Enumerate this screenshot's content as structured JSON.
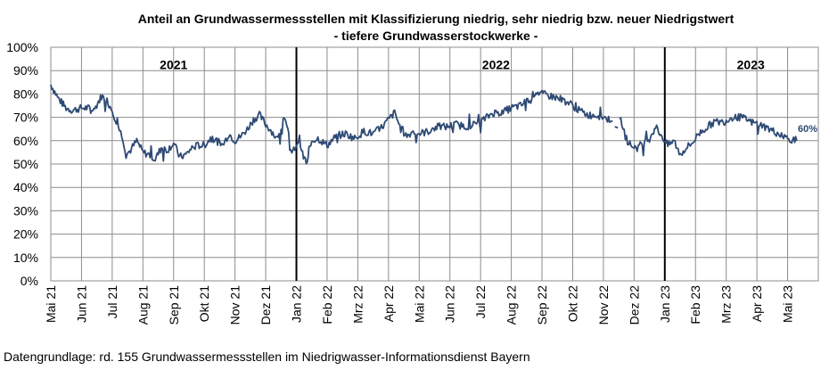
{
  "chart_data": {
    "type": "line",
    "title_line1": "Anteil an Grundwassermessstellen mit Klassifizierung niedrig, sehr niedrig bzw. neuer Niedrigstwert",
    "title_line2": "- tiefere Grundwasserstockwerke -",
    "y_ticks": [
      "0%",
      "10%",
      "20%",
      "30%",
      "40%",
      "50%",
      "60%",
      "70%",
      "80%",
      "90%",
      "100%"
    ],
    "ylim": [
      0,
      100
    ],
    "x_ticks": [
      "Mai 21",
      "Jun 21",
      "Jul 21",
      "Aug 21",
      "Sep 21",
      "Okt 21",
      "Nov 21",
      "Dez 21",
      "Jan 22",
      "Feb 22",
      "Mrz 22",
      "Apr 22",
      "Mai 22",
      "Jun 22",
      "Jul 22",
      "Aug 22",
      "Sep 22",
      "Okt 22",
      "Nov 22",
      "Dez 22",
      "Jan 23",
      "Feb 23",
      "Mrz 23",
      "Apr 23",
      "Mai 23"
    ],
    "grid": true,
    "year_labels": [
      {
        "text": "2021",
        "month_index": 4.0
      },
      {
        "text": "2022",
        "month_index": 14.5
      },
      {
        "text": "2023",
        "month_index": 22.8
      }
    ],
    "year_dividers_month_index": [
      8,
      20
    ],
    "end_label": "60%",
    "line_color": "#2e4a74",
    "series_anchor_points": [
      [
        0.0,
        84
      ],
      [
        0.25,
        78
      ],
      [
        0.5,
        74
      ],
      [
        0.7,
        73
      ],
      [
        1.0,
        74
      ],
      [
        1.2,
        74
      ],
      [
        1.4,
        73
      ],
      [
        1.65,
        79
      ],
      [
        1.8,
        78
      ],
      [
        2.0,
        73
      ],
      [
        2.2,
        66
      ],
      [
        2.35,
        61
      ],
      [
        2.45,
        54
      ],
      [
        2.6,
        56
      ],
      [
        2.8,
        60
      ],
      [
        3.0,
        55
      ],
      [
        3.2,
        54
      ],
      [
        3.4,
        52
      ],
      [
        3.6,
        57
      ],
      [
        3.8,
        56
      ],
      [
        4.0,
        59
      ],
      [
        4.2,
        53
      ],
      [
        4.4,
        54
      ],
      [
        4.6,
        57
      ],
      [
        4.8,
        58
      ],
      [
        5.0,
        58
      ],
      [
        5.2,
        61
      ],
      [
        5.4,
        60
      ],
      [
        5.6,
        58
      ],
      [
        5.8,
        63
      ],
      [
        6.0,
        60
      ],
      [
        6.2,
        62
      ],
      [
        6.4,
        65
      ],
      [
        6.6,
        69
      ],
      [
        6.8,
        71
      ],
      [
        7.0,
        67
      ],
      [
        7.2,
        64
      ],
      [
        7.4,
        60
      ],
      [
        7.6,
        71
      ],
      [
        7.75,
        62
      ],
      [
        7.85,
        54
      ],
      [
        7.95,
        57
      ],
      [
        8.1,
        61
      ],
      [
        8.2,
        54
      ],
      [
        8.35,
        50
      ],
      [
        8.5,
        60
      ],
      [
        8.7,
        61
      ],
      [
        9.0,
        58
      ],
      [
        9.3,
        62
      ],
      [
        9.6,
        63
      ],
      [
        9.9,
        61
      ],
      [
        10.2,
        64
      ],
      [
        10.5,
        63
      ],
      [
        10.8,
        66
      ],
      [
        11.0,
        69
      ],
      [
        11.2,
        72
      ],
      [
        11.4,
        65
      ],
      [
        11.6,
        62
      ],
      [
        11.8,
        64
      ],
      [
        12.0,
        63
      ],
      [
        12.3,
        64
      ],
      [
        12.6,
        66
      ],
      [
        12.9,
        66
      ],
      [
        13.2,
        67
      ],
      [
        13.5,
        66
      ],
      [
        13.8,
        67
      ],
      [
        14.1,
        69
      ],
      [
        14.4,
        72
      ],
      [
        14.7,
        72
      ],
      [
        15.0,
        74
      ],
      [
        15.3,
        75
      ],
      [
        15.6,
        78
      ],
      [
        15.8,
        81
      ],
      [
        16.0,
        80
      ],
      [
        16.3,
        79
      ],
      [
        16.6,
        78
      ],
      [
        16.9,
        76
      ],
      [
        17.2,
        73
      ],
      [
        17.5,
        71
      ],
      [
        17.8,
        71
      ],
      [
        18.0,
        70
      ],
      [
        18.2,
        69
      ],
      [
        18.4,
        70
      ],
      [
        18.6,
        68
      ],
      [
        18.75,
        60
      ],
      [
        18.9,
        58
      ],
      [
        19.1,
        57
      ],
      [
        19.3,
        59
      ],
      [
        19.5,
        61
      ],
      [
        19.7,
        66
      ],
      [
        19.9,
        62
      ],
      [
        20.1,
        58
      ],
      [
        20.3,
        60
      ],
      [
        20.5,
        54
      ],
      [
        20.7,
        57
      ],
      [
        20.9,
        59
      ],
      [
        21.1,
        63
      ],
      [
        21.3,
        65
      ],
      [
        21.6,
        68
      ],
      [
        21.9,
        68
      ],
      [
        22.2,
        70
      ],
      [
        22.5,
        70
      ],
      [
        22.8,
        68
      ],
      [
        23.1,
        67
      ],
      [
        23.4,
        65
      ],
      [
        23.7,
        63
      ],
      [
        24.0,
        61
      ],
      [
        24.3,
        60
      ]
    ],
    "gap_ranges_month_index": [
      [
        18.32,
        18.52
      ]
    ]
  },
  "footer": {
    "text": "Datengrundlage:  rd. 155 Grundwassermessstellen  im Niedrigwasser-Informationsdienst  Bayern"
  }
}
